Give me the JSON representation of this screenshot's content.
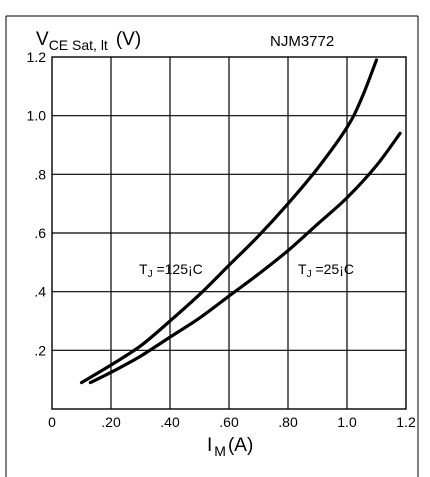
{
  "chart_data": {
    "type": "line",
    "title": "NJM3772",
    "ylabel_main": "V",
    "ylabel_sub": "CE Sat, lt",
    "ylabel_unit": "(V)",
    "xlabel_main": "I",
    "xlabel_sub": "M",
    "xlabel_unit": "(A)",
    "xlim": [
      0,
      1.2
    ],
    "ylim": [
      0,
      1.2
    ],
    "grid": true,
    "x_ticks": [
      0,
      0.2,
      0.4,
      0.6,
      0.8,
      1.0,
      1.2
    ],
    "x_tick_labels": [
      "0",
      ".20",
      ".40",
      ".60",
      ".80",
      "1.0",
      "1.2"
    ],
    "y_ticks": [
      0.2,
      0.4,
      0.6,
      0.8,
      1.0,
      1.2
    ],
    "y_tick_labels": [
      ".2",
      ".4",
      ".6",
      ".8",
      "1.0",
      "1.2"
    ],
    "series": [
      {
        "name": "TJ =125¡C",
        "label_main": "T",
        "label_sub": "J",
        "label_rest": " =125¡C",
        "x": [
          0.1,
          0.2,
          0.3,
          0.4,
          0.5,
          0.6,
          0.7,
          0.8,
          0.9,
          1.0,
          1.05,
          1.1
        ],
        "y": [
          0.09,
          0.15,
          0.215,
          0.3,
          0.39,
          0.49,
          0.59,
          0.7,
          0.82,
          0.96,
          1.06,
          1.19
        ]
      },
      {
        "name": "TJ =25¡C",
        "label_main": "T",
        "label_sub": "J",
        "label_rest": " =25¡C",
        "x": [
          0.13,
          0.2,
          0.3,
          0.4,
          0.5,
          0.6,
          0.7,
          0.8,
          0.9,
          1.0,
          1.1,
          1.18
        ],
        "y": [
          0.09,
          0.125,
          0.18,
          0.245,
          0.31,
          0.385,
          0.46,
          0.54,
          0.63,
          0.72,
          0.83,
          0.94
        ]
      }
    ]
  }
}
